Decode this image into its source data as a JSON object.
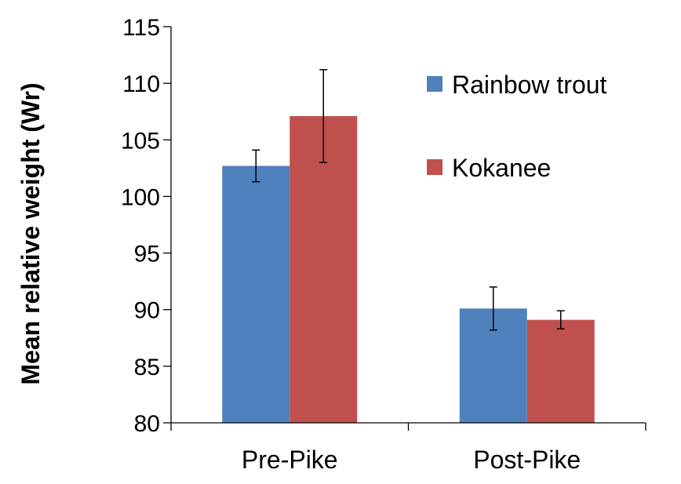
{
  "chart_data": {
    "type": "bar",
    "title": "",
    "xlabel": "",
    "ylabel": "Mean relative weight (Wr)",
    "ylim": [
      80,
      115
    ],
    "yticks": [
      80,
      85,
      90,
      95,
      100,
      105,
      110,
      115
    ],
    "categories": [
      "Pre-Pike",
      "Post-Pike"
    ],
    "series": [
      {
        "name": "Rainbow trout",
        "color": "#4f81bd",
        "values": [
          102.7,
          90.1
        ],
        "error": [
          1.4,
          1.9
        ]
      },
      {
        "name": "Kokanee",
        "color": "#c0504d",
        "values": [
          107.1,
          89.1
        ],
        "error": [
          4.1,
          0.8
        ]
      }
    ],
    "legend_position": "top-right",
    "grid": false
  }
}
